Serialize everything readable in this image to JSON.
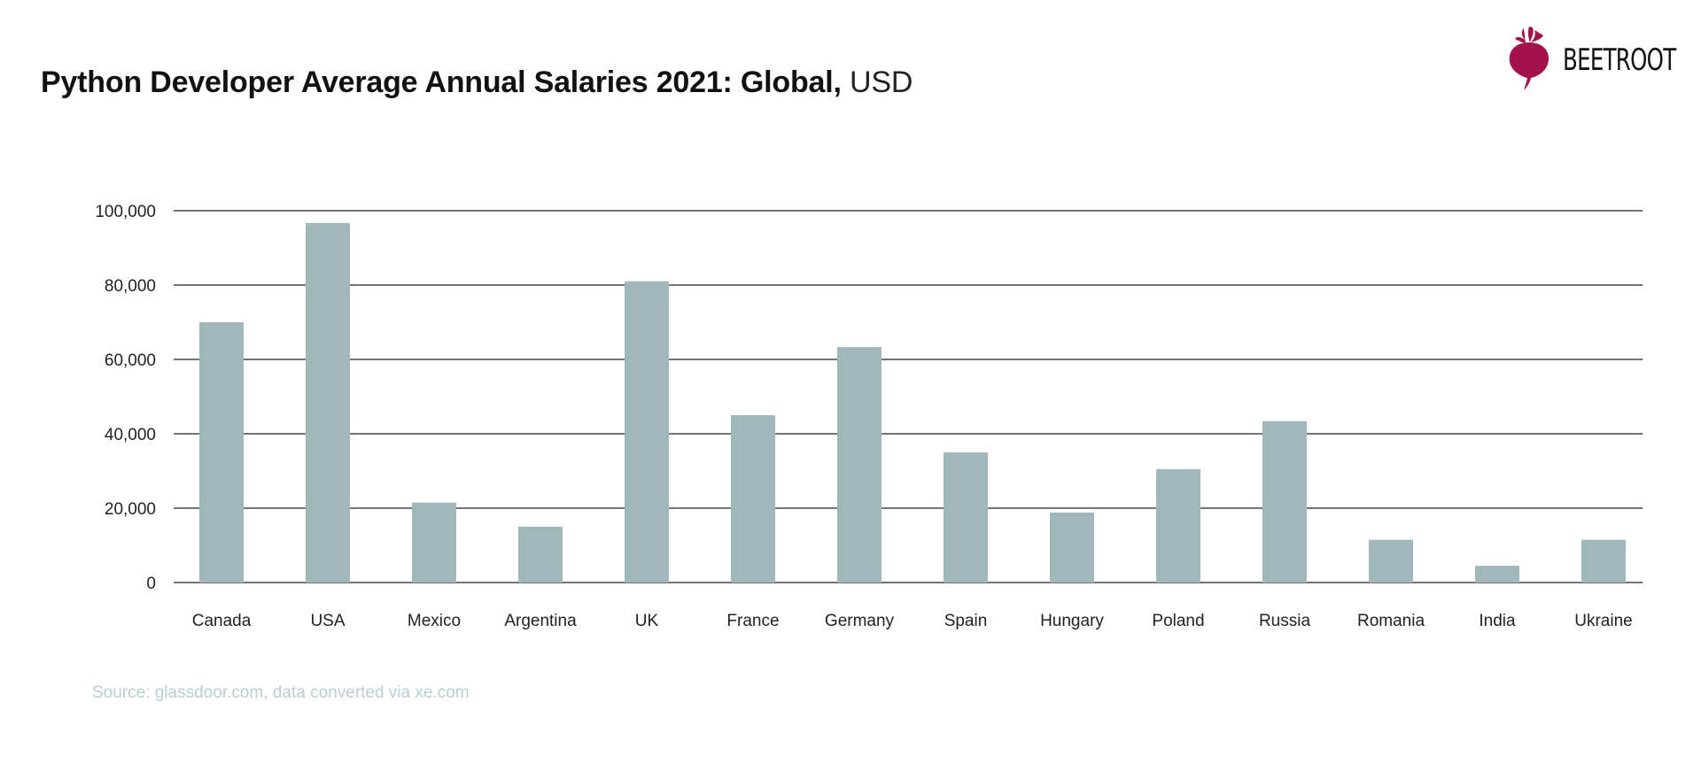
{
  "header": {
    "title_bold": "Python Developer Average Annual Salaries 2021: Global,",
    "title_unit": "USD"
  },
  "logo": {
    "text": "BEETROOT",
    "icon": "beetroot-icon",
    "color": "#a3124a"
  },
  "source": "Source: glassdoor.com, data converted via xe.com",
  "colors": {
    "bar": "#a2b7bb",
    "grid": "#222222"
  },
  "chart_data": {
    "type": "bar",
    "title": "Python Developer Average Annual Salaries 2021: Global, USD",
    "xlabel": "",
    "ylabel": "",
    "categories": [
      "Canada",
      "USA",
      "Mexico",
      "Argentina",
      "UK",
      "France",
      "Germany",
      "Spain",
      "Hungary",
      "Poland",
      "Russia",
      "Romania",
      "India",
      "Ukraine"
    ],
    "values": [
      70000,
      96700,
      21500,
      15000,
      81000,
      45000,
      63300,
      35000,
      18800,
      30500,
      43400,
      11500,
      4500,
      11500
    ],
    "ylim": [
      0,
      100000
    ],
    "yticks": [
      0,
      20000,
      40000,
      60000,
      80000,
      100000
    ],
    "ytick_labels": [
      "0",
      "20,000",
      "40,000",
      "60,000",
      "80,000",
      "100,000"
    ],
    "grid": true,
    "legend": "none"
  }
}
